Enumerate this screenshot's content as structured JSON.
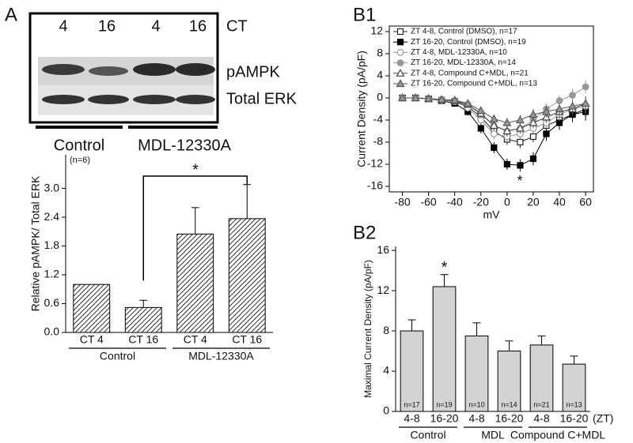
{
  "blot": {
    "panel_label": "A",
    "lane_labels": [
      "4",
      "16",
      "4",
      "16"
    ],
    "lane_header": "CT",
    "bands": [
      "pAMPK",
      "Total ERK"
    ],
    "groups": [
      "Control",
      "MDL-12330A"
    ]
  },
  "chart_data": [
    {
      "type": "bar",
      "ylabel": "Relative pAMPK/ Total ERK",
      "note": "(n=6)",
      "annotation": "*",
      "categories": [
        "CT 4",
        "CT 16",
        "CT 4",
        "CT 16"
      ],
      "groups": [
        "Control",
        "MDL-12330A"
      ],
      "values": [
        1.0,
        0.52,
        2.05,
        2.37
      ],
      "errors": [
        0,
        0.15,
        0.55,
        0.71
      ],
      "color": "#ffffff",
      "pattern": "hatched",
      "ylim": [
        0,
        3.7
      ],
      "yticks": [
        {
          "value": 0,
          "label": "0.0"
        },
        0.6,
        1.2,
        1.8,
        2.4,
        {
          "value": 3,
          "label": "3.0"
        }
      ]
    },
    {
      "type": "line",
      "panel_label": "B1",
      "xlabel": "mV",
      "ylabel": "Current Density (pA/pF)",
      "annotation": "*",
      "x": [
        -80,
        -70,
        -60,
        -50,
        -40,
        -30,
        -20,
        -10,
        0,
        10,
        20,
        30,
        40,
        50,
        60
      ],
      "series": [
        {
          "name": "ZT 4-8, Control (DMSO), n=17",
          "color": "#222222",
          "marker": "square",
          "marker_fill": "#ffffff",
          "values": [
            0,
            0,
            -0.2,
            -0.4,
            -0.6,
            -1.5,
            -3.5,
            -6,
            -7.5,
            -8,
            -7,
            -5,
            -4,
            -3,
            -2
          ],
          "errors": [
            0.3,
            0.3,
            0.3,
            0.4,
            0.4,
            0.6,
            0.8,
            1,
            1,
            1.1,
            1,
            1,
            1.2,
            1.3,
            1.5
          ]
        },
        {
          "name": "ZT 16-20, Control (DMSO), n=19",
          "color": "#000000",
          "marker": "square",
          "marker_fill": "#000000",
          "values": [
            0,
            0,
            -0.2,
            -0.5,
            -1,
            -2.5,
            -5.5,
            -9,
            -12,
            -12.2,
            -11,
            -6.5,
            -4.5,
            -3,
            -2.5
          ],
          "errors": [
            0.3,
            0.3,
            0.3,
            0.4,
            0.5,
            0.7,
            0.9,
            1,
            1,
            1.1,
            1.2,
            1.3,
            1.3,
            1.4,
            1.6
          ]
        },
        {
          "name": "ZT 4-8, MDL-12330A, n=10",
          "color": "#999999",
          "marker": "circle",
          "marker_fill": "#ffffff",
          "values": [
            0,
            0,
            -0.2,
            -0.4,
            -0.7,
            -1.8,
            -4,
            -6.5,
            -7,
            -6.5,
            -5.5,
            -4.5,
            -3,
            -2,
            -1.5
          ],
          "errors": [
            0.3,
            0.3,
            0.3,
            0.4,
            0.4,
            0.6,
            0.8,
            1,
            1,
            1,
            1,
            1,
            1.1,
            1.2,
            1.3
          ]
        },
        {
          "name": "ZT 16-20, MDL-12330A, n=14",
          "color": "#999999",
          "marker": "circle",
          "marker_fill": "#999999",
          "values": [
            0,
            0,
            -0.2,
            -0.3,
            -0.5,
            -1.2,
            -3,
            -5,
            -6,
            -5.5,
            -4,
            -2,
            -0.5,
            0.5,
            2
          ],
          "errors": [
            0.3,
            0.3,
            0.3,
            0.3,
            0.4,
            0.5,
            0.7,
            0.9,
            1,
            1,
            1,
            1,
            1,
            1.1,
            1.2
          ]
        },
        {
          "name": "ZT 4-8, Compound C+MDL, n=21",
          "color": "#444444",
          "marker": "triangle",
          "marker_fill": "#ffffff",
          "values": [
            0,
            0,
            -0.1,
            -0.3,
            -0.5,
            -1.2,
            -2.8,
            -5,
            -6,
            -5.5,
            -4.5,
            -3.5,
            -2.5,
            -2,
            -1
          ],
          "errors": [
            0.3,
            0.3,
            0.3,
            0.3,
            0.4,
            0.5,
            0.7,
            0.8,
            0.9,
            0.9,
            1,
            1,
            1.1,
            1.2,
            1.3
          ]
        },
        {
          "name": "ZT 16-20, Compound C+MDL, n=13",
          "color": "#555555",
          "marker": "triangle",
          "marker_fill": "#999999",
          "values": [
            0,
            0,
            -0.1,
            -0.3,
            -0.4,
            -1,
            -2.3,
            -3.8,
            -4.5,
            -4,
            -3,
            -2.5,
            -2,
            -1.5,
            -1
          ],
          "errors": [
            0.3,
            0.3,
            0.3,
            0.3,
            0.3,
            0.5,
            0.6,
            0.8,
            0.9,
            0.9,
            1,
            1,
            1,
            1.1,
            1.2
          ]
        }
      ],
      "xlim": [
        -90,
        66
      ],
      "xticks": [
        -80,
        -60,
        -40,
        -20,
        0,
        20,
        40,
        60
      ],
      "ylim": [
        -17,
        13
      ],
      "yticks": [
        -16,
        -12,
        -8,
        -4,
        0,
        4,
        8,
        12
      ]
    },
    {
      "type": "bar",
      "panel_label": "B2",
      "ylabel": "Maximal Current Density (pA/pF)",
      "annotation": "*",
      "categories": [
        "4-8",
        "16-20",
        "4-8",
        "16-20",
        "4-8",
        "16-20"
      ],
      "category_unit": "(ZT)",
      "groups": [
        "Control",
        "MDL",
        "Compound C+MDL"
      ],
      "values": [
        8.0,
        12.4,
        7.5,
        6.0,
        6.6,
        4.7
      ],
      "errors": [
        1.1,
        1.2,
        1.3,
        1.0,
        0.9,
        0.8
      ],
      "n_labels": [
        "n=17",
        "n=19",
        "n=10",
        "n=14",
        "n=21",
        "n=13"
      ],
      "color": "#d3d3d3",
      "pattern": "solid",
      "ylim": [
        0,
        16.4
      ],
      "yticks": [
        0,
        4,
        8,
        12,
        16
      ]
    }
  ]
}
